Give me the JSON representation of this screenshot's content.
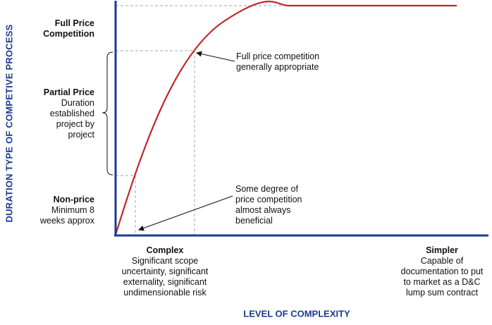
{
  "y_axis": {
    "title": "DURATION TYPE OF COMPETIVE PROCESS",
    "levels": [
      {
        "heading": "Full Price",
        "lines": [
          "Competition"
        ]
      },
      {
        "heading": "Partial Price",
        "lines": [
          "Duration",
          "established",
          "project by",
          "project"
        ]
      },
      {
        "heading": "Non-price",
        "lines": [
          "Minimum 8",
          "weeks approx"
        ]
      }
    ]
  },
  "x_axis": {
    "title": "LEVEL OF COMPLEXITY",
    "left": {
      "heading": "Complex",
      "lines": [
        "Significant scope",
        "uncertainty, significant",
        "externality, significant",
        "undimensionable risk"
      ]
    },
    "right": {
      "heading": "Simpler",
      "lines": [
        "Capable of",
        "documentation to put",
        "to market as a D&C",
        "lump sum contract"
      ]
    }
  },
  "callouts": [
    {
      "lines": [
        "Full price competition",
        "generally appropriate"
      ]
    },
    {
      "lines": [
        "Some degree of",
        "price competition",
        "almost always",
        "beneficial"
      ]
    }
  ],
  "colors": {
    "axis": "#1b3b8f",
    "curve": "#c0272d",
    "guide": "#aaaaaa",
    "text": "#111111"
  }
}
